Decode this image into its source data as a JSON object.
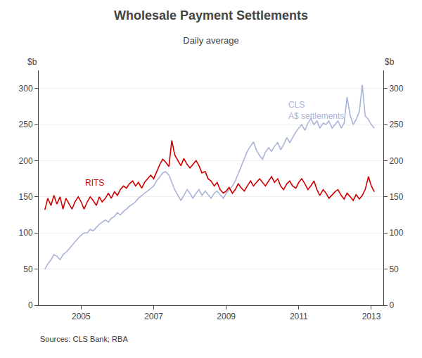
{
  "chart_data": {
    "type": "line",
    "title": "Wholesale Payment Settlements",
    "subtitle": "Daily average",
    "ylabel": "$b",
    "y2label": "$b",
    "source": "Sources: CLS Bank; RBA",
    "xlim": [
      2003.83,
      2013.33
    ],
    "xticks": [
      2005,
      2007,
      2009,
      2011,
      2013
    ],
    "ylim": [
      0,
      325
    ],
    "yticks": [
      0,
      50,
      100,
      150,
      200,
      250,
      300
    ],
    "y2lim": [
      0,
      325
    ],
    "y2ticks": [
      0,
      50,
      100,
      150,
      200,
      250,
      300
    ],
    "grid": true,
    "x": [
      2004,
      2004.08,
      2004.17,
      2004.25,
      2004.33,
      2004.42,
      2004.5,
      2004.58,
      2004.67,
      2004.75,
      2004.83,
      2004.92,
      2005,
      2005.08,
      2005.17,
      2005.25,
      2005.33,
      2005.42,
      2005.5,
      2005.58,
      2005.67,
      2005.75,
      2005.83,
      2005.92,
      2006,
      2006.08,
      2006.17,
      2006.25,
      2006.33,
      2006.42,
      2006.5,
      2006.58,
      2006.67,
      2006.75,
      2006.83,
      2006.92,
      2007,
      2007.08,
      2007.17,
      2007.25,
      2007.33,
      2007.42,
      2007.5,
      2007.58,
      2007.67,
      2007.75,
      2007.83,
      2007.92,
      2008,
      2008.08,
      2008.17,
      2008.25,
      2008.33,
      2008.42,
      2008.5,
      2008.58,
      2008.67,
      2008.75,
      2008.83,
      2008.92,
      2009,
      2009.08,
      2009.17,
      2009.25,
      2009.33,
      2009.42,
      2009.5,
      2009.58,
      2009.67,
      2009.75,
      2009.83,
      2009.92,
      2010,
      2010.08,
      2010.17,
      2010.25,
      2010.33,
      2010.42,
      2010.5,
      2010.58,
      2010.67,
      2010.75,
      2010.83,
      2010.92,
      2011,
      2011.08,
      2011.17,
      2011.25,
      2011.33,
      2011.42,
      2011.5,
      2011.58,
      2011.67,
      2011.75,
      2011.83,
      2011.92,
      2012,
      2012.08,
      2012.17,
      2012.25,
      2012.33,
      2012.42,
      2012.5,
      2012.58,
      2012.67,
      2012.75,
      2012.83,
      2012.92,
      2013,
      2013.08
    ],
    "series": [
      {
        "name": "CLS\nA$ settlements",
        "color": "#aab4d8",
        "values": [
          50,
          57,
          63,
          70,
          68,
          63,
          70,
          73,
          78,
          83,
          88,
          93,
          97,
          100,
          100,
          105,
          103,
          108,
          112,
          115,
          118,
          115,
          120,
          123,
          128,
          125,
          130,
          133,
          137,
          140,
          143,
          148,
          152,
          155,
          158,
          162,
          165,
          172,
          178,
          183,
          185,
          180,
          170,
          160,
          152,
          145,
          152,
          160,
          155,
          148,
          155,
          160,
          152,
          158,
          153,
          148,
          155,
          158,
          153,
          148,
          155,
          160,
          165,
          172,
          182,
          192,
          202,
          213,
          220,
          226,
          215,
          207,
          202,
          212,
          218,
          213,
          220,
          225,
          215,
          222,
          232,
          225,
          232,
          240,
          245,
          250,
          242,
          252,
          258,
          250,
          255,
          245,
          252,
          250,
          255,
          245,
          250,
          255,
          245,
          252,
          288,
          262,
          250,
          257,
          268,
          305,
          262,
          257,
          250,
          245
        ]
      },
      {
        "name": "RITS",
        "color": "#cc0000",
        "values": [
          132,
          148,
          138,
          152,
          140,
          150,
          133,
          148,
          140,
          133,
          143,
          150,
          143,
          133,
          143,
          150,
          145,
          138,
          150,
          143,
          148,
          155,
          148,
          157,
          152,
          160,
          165,
          162,
          168,
          172,
          165,
          170,
          162,
          170,
          175,
          180,
          175,
          185,
          195,
          202,
          198,
          192,
          228,
          208,
          200,
          193,
          203,
          195,
          190,
          195,
          200,
          193,
          183,
          185,
          175,
          172,
          165,
          170,
          160,
          155,
          158,
          163,
          155,
          160,
          168,
          162,
          158,
          165,
          172,
          165,
          170,
          175,
          170,
          165,
          172,
          178,
          170,
          175,
          165,
          160,
          168,
          172,
          165,
          162,
          170,
          175,
          168,
          160,
          165,
          172,
          160,
          152,
          160,
          155,
          148,
          153,
          157,
          160,
          152,
          147,
          155,
          150,
          145,
          153,
          147,
          152,
          160,
          178,
          165,
          157
        ]
      }
    ]
  }
}
